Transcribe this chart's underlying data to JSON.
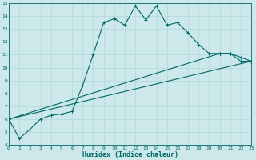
{
  "xlabel": "Humidex (Indice chaleur)",
  "xlim": [
    0,
    23
  ],
  "ylim": [
    4,
    15
  ],
  "yticks": [
    4,
    5,
    6,
    7,
    8,
    9,
    10,
    11,
    12,
    13,
    14,
    15
  ],
  "xticks": [
    0,
    1,
    2,
    3,
    4,
    5,
    6,
    7,
    8,
    9,
    10,
    11,
    12,
    13,
    14,
    15,
    16,
    17,
    18,
    19,
    20,
    21,
    22,
    23
  ],
  "bg_color": "#cce8ea",
  "grid_color": "#b0d8dc",
  "line_color": "#006868",
  "line1_x": [
    0,
    1,
    2,
    3,
    4,
    5,
    6,
    7,
    8,
    9,
    10,
    11,
    12,
    13,
    14,
    15,
    16,
    17,
    18,
    19,
    20,
    21,
    22,
    23
  ],
  "line1_y": [
    6.0,
    4.5,
    5.2,
    6.0,
    6.3,
    6.4,
    6.6,
    8.6,
    11.0,
    13.5,
    13.8,
    13.3,
    14.8,
    13.7,
    14.8,
    13.3,
    13.5,
    12.7,
    11.8,
    11.1,
    11.1,
    11.1,
    10.5,
    10.5
  ],
  "line2_x": [
    0,
    23
  ],
  "line2_y": [
    6.0,
    10.5
  ],
  "line3_x": [
    0,
    20,
    21,
    22,
    23
  ],
  "line3_y": [
    6.0,
    11.1,
    11.1,
    10.8,
    10.5
  ]
}
